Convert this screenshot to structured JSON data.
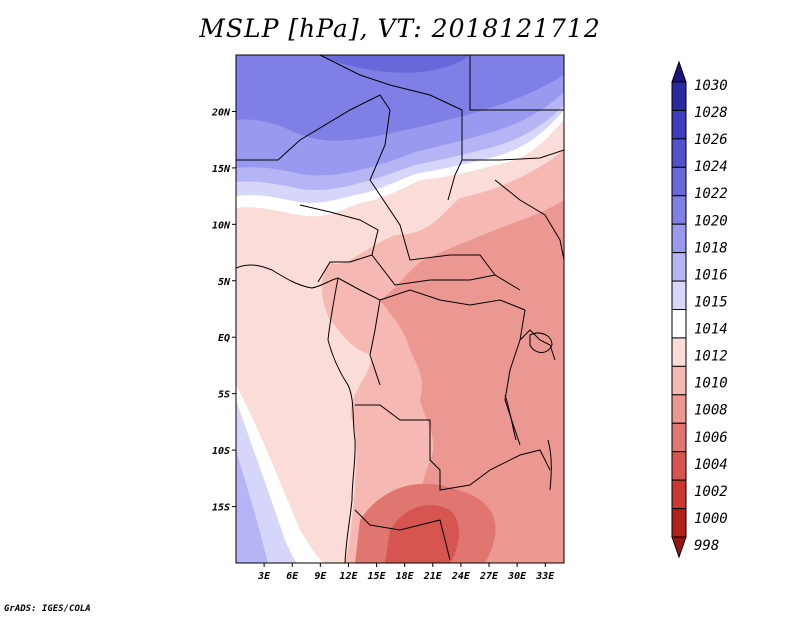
{
  "title": "MSLP [hPa], VT: 2018121712",
  "credit": "GrADS: IGES/COLA",
  "map": {
    "lon_range": [
      0,
      35
    ],
    "lat_range": [
      -20,
      25
    ],
    "lon_ticks": [
      {
        "value": 3,
        "label": "3E"
      },
      {
        "value": 6,
        "label": "6E"
      },
      {
        "value": 9,
        "label": "9E"
      },
      {
        "value": 12,
        "label": "12E"
      },
      {
        "value": 15,
        "label": "15E"
      },
      {
        "value": 18,
        "label": "18E"
      },
      {
        "value": 21,
        "label": "21E"
      },
      {
        "value": 24,
        "label": "24E"
      },
      {
        "value": 27,
        "label": "27E"
      },
      {
        "value": 30,
        "label": "30E"
      },
      {
        "value": 33,
        "label": "33E"
      }
    ],
    "lat_ticks": [
      {
        "value": 20,
        "label": "20N"
      },
      {
        "value": 15,
        "label": "15N"
      },
      {
        "value": 10,
        "label": "10N"
      },
      {
        "value": 5,
        "label": "5N"
      },
      {
        "value": 0,
        "label": "EQ"
      },
      {
        "value": -5,
        "label": "5S"
      },
      {
        "value": -10,
        "label": "10S"
      },
      {
        "value": -15,
        "label": "15S"
      }
    ]
  },
  "colorbar": {
    "labels": [
      "1030",
      "1028",
      "1026",
      "1024",
      "1022",
      "1020",
      "1018",
      "1016",
      "1015",
      "1014",
      "1012",
      "1010",
      "1008",
      "1006",
      "1004",
      "1002",
      "1000",
      "998"
    ],
    "colors": [
      "#1a147d",
      "#2c2aa3",
      "#3d3dbd",
      "#5252cc",
      "#6868db",
      "#7f7fe6",
      "#9999ef",
      "#b5b5f5",
      "#d6d6fa",
      "#ffffff",
      "#fadcd8",
      "#f5b8b2",
      "#eb9893",
      "#e07670",
      "#d65550",
      "#c9372f",
      "#b22018",
      "#961510"
    ]
  },
  "pressure_levels": [
    {
      "name": "1020-1022",
      "color": "#7f7fe6"
    },
    {
      "name": "1018-1020",
      "color": "#9999ef"
    },
    {
      "name": "1016-1018",
      "color": "#b5b5f5"
    },
    {
      "name": "1015-1016",
      "color": "#d6d6fa"
    },
    {
      "name": "1014-1015",
      "color": "#ffffff"
    },
    {
      "name": "1012-1014",
      "color": "#fadcd8"
    },
    {
      "name": "1010-1012",
      "color": "#f5b8b2"
    },
    {
      "name": "1008-1010",
      "color": "#eb9893"
    },
    {
      "name": "1006-1008",
      "color": "#e07670"
    }
  ]
}
